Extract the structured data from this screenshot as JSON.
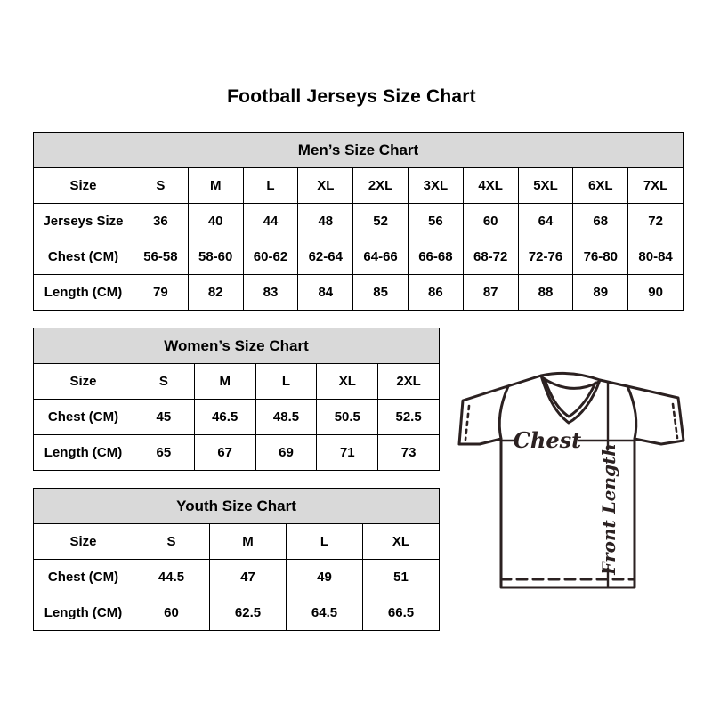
{
  "page": {
    "title": "Football Jerseys Size Chart"
  },
  "tables": [
    {
      "id": "mens",
      "header": "Men’s Size Chart",
      "rows": [
        [
          "Size",
          "S",
          "M",
          "L",
          "XL",
          "2XL",
          "3XL",
          "4XL",
          "5XL",
          "6XL",
          "7XL"
        ],
        [
          "Jerseys Size",
          "36",
          "40",
          "44",
          "48",
          "52",
          "56",
          "60",
          "64",
          "68",
          "72"
        ],
        [
          "Chest (CM)",
          "56-58",
          "58-60",
          "60-62",
          "62-64",
          "64-66",
          "66-68",
          "68-72",
          "72-76",
          "76-80",
          "80-84"
        ],
        [
          "Length (CM)",
          "79",
          "82",
          "83",
          "84",
          "85",
          "86",
          "87",
          "88",
          "89",
          "90"
        ]
      ]
    },
    {
      "id": "womens",
      "header": "Women’s Size Chart",
      "rows": [
        [
          "Size",
          "S",
          "M",
          "L",
          "XL",
          "2XL"
        ],
        [
          "Chest (CM)",
          "45",
          "46.5",
          "48.5",
          "50.5",
          "52.5"
        ],
        [
          "Length (CM)",
          "65",
          "67",
          "69",
          "71",
          "73"
        ]
      ]
    },
    {
      "id": "youth",
      "header": "Youth Size Chart",
      "rows": [
        [
          "Size",
          "S",
          "M",
          "L",
          "XL"
        ],
        [
          "Chest (CM)",
          "44.5",
          "47",
          "49",
          "51"
        ],
        [
          "Length (CM)",
          "60",
          "62.5",
          "64.5",
          "66.5"
        ]
      ]
    }
  ],
  "diagram": {
    "chest_label": "Chest",
    "front_length_label": "Front Length"
  },
  "colors": {
    "header_bg": "#d9d9d9",
    "table_border": "#000000",
    "text": "#000000",
    "jersey_line": "#2b2121",
    "background": "#ffffff"
  }
}
